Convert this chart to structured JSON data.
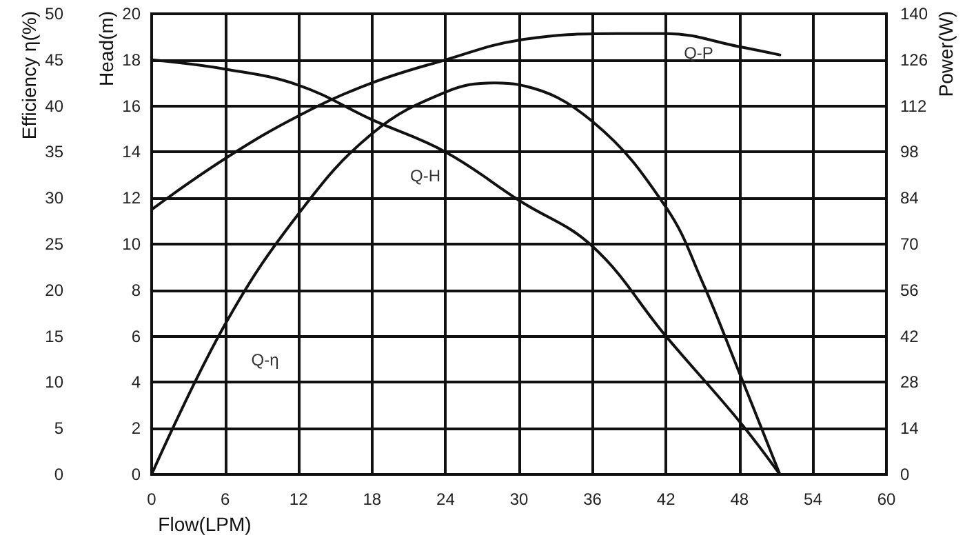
{
  "chart_data": {
    "type": "line",
    "xlabel": "Flow(LPM)",
    "ylabel": "Head(m)",
    "y2label": "Power(W)",
    "y3label": "Efficiency η(%)",
    "xlim": [
      0,
      60
    ],
    "xticks": [
      0,
      6,
      12,
      18,
      24,
      30,
      36,
      42,
      48,
      54,
      60
    ],
    "ylim": [
      0,
      20
    ],
    "yticks": [
      0,
      2,
      4,
      6,
      8,
      10,
      12,
      14,
      16,
      18,
      20
    ],
    "y2lim": [
      0,
      140
    ],
    "y2ticks": [
      0,
      14,
      28,
      42,
      56,
      70,
      84,
      98,
      112,
      126,
      140
    ],
    "y3lim": [
      0,
      50
    ],
    "y3ticks": [
      0,
      5,
      10,
      15,
      20,
      25,
      30,
      35,
      40,
      45,
      50
    ],
    "grid": true,
    "legend": false,
    "marker": "none",
    "line_style": "solid",
    "series": [
      {
        "name": "Q-H",
        "color": "#111111",
        "axis": "y",
        "x": [
          0,
          6,
          12,
          18,
          24,
          30,
          36,
          42,
          48,
          51.3
        ],
        "values": [
          18,
          17.6,
          16.9,
          15.4,
          14,
          11.9,
          9.9,
          6.0,
          2.3,
          0
        ]
      },
      {
        "name": "Q-η",
        "color": "#111111",
        "axis": "y3",
        "x": [
          0,
          6,
          12,
          18,
          24,
          28,
          30,
          36,
          42,
          45,
          48,
          51.3
        ],
        "values": [
          0,
          16.3,
          28.3,
          37,
          41.5,
          42.5,
          42.3,
          38.3,
          29,
          20.8,
          11,
          0
        ]
      },
      {
        "name": "Q-P",
        "color": "#111111",
        "axis": "y2",
        "x": [
          0,
          6,
          12,
          18,
          24,
          30,
          38,
          42,
          48,
          51.3
        ],
        "values": [
          80.5,
          96,
          109,
          119,
          126,
          132,
          134,
          134,
          130,
          127.5
        ]
      }
    ]
  }
}
